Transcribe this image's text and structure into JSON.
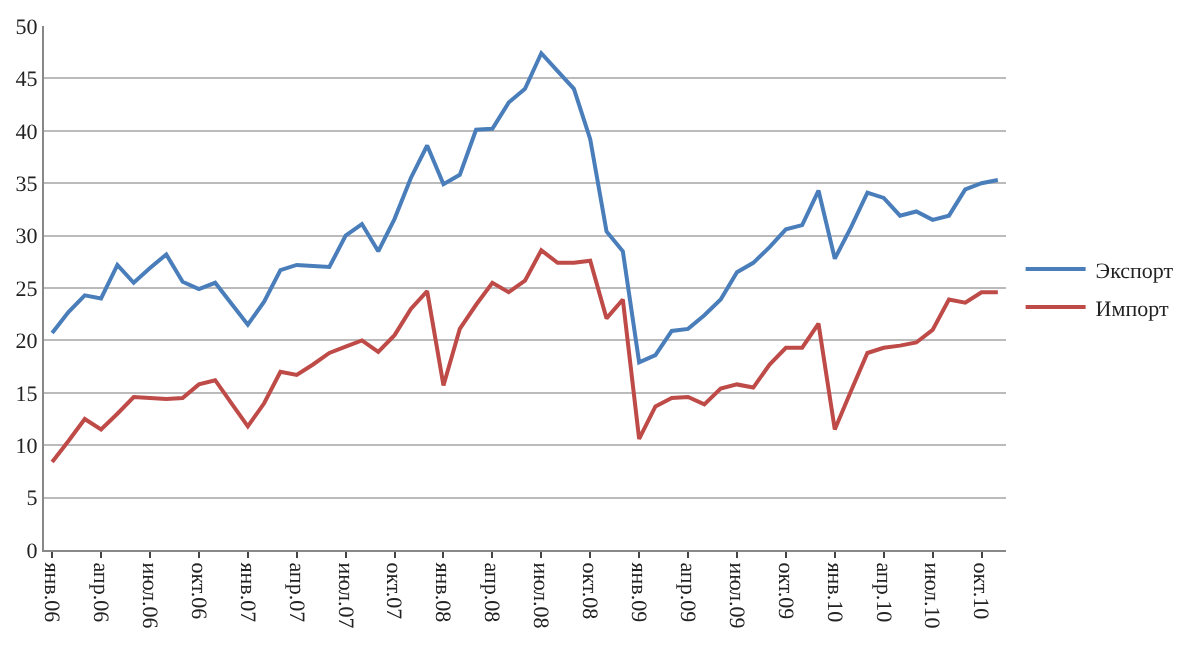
{
  "chart_data": {
    "type": "line",
    "categories": [
      "янв.06",
      null,
      null,
      "апр.06",
      null,
      null,
      "июл.06",
      null,
      null,
      "окт.06",
      null,
      null,
      "янв.07",
      null,
      null,
      "апр.07",
      null,
      null,
      "июл.07",
      null,
      null,
      "окт.07",
      null,
      null,
      "янв.08",
      null,
      null,
      "апр.08",
      null,
      null,
      "июл.08",
      null,
      null,
      "окт.08",
      null,
      null,
      "янв.09",
      null,
      null,
      "апр.09",
      null,
      null,
      "июл.09",
      null,
      null,
      "окт.09",
      null,
      null,
      "янв.10",
      null,
      null,
      "апр.10",
      null,
      null,
      "июл.10",
      null,
      null,
      "окт.10",
      null
    ],
    "series": [
      {
        "name": "Экспорт",
        "color": "#4a7ebb",
        "values": [
          20.7,
          22.7,
          24.3,
          24.0,
          27.2,
          25.5,
          26.9,
          28.2,
          25.6,
          24.9,
          25.5,
          23.5,
          21.5,
          23.7,
          26.7,
          27.2,
          27.1,
          27.0,
          30.0,
          31.1,
          28.5,
          31.6,
          35.5,
          38.6,
          34.9,
          35.8,
          40.1,
          40.2,
          42.7,
          44.0,
          47.4,
          45.7,
          44.0,
          39.2,
          30.4,
          28.5,
          17.9,
          18.6,
          20.9,
          21.1,
          22.4,
          23.9,
          26.5,
          27.4,
          28.9,
          30.6,
          31.0,
          34.3,
          27.8,
          30.8,
          34.1,
          33.6,
          31.9,
          32.3,
          31.5,
          31.9,
          34.4,
          35.0,
          35.3
        ]
      },
      {
        "name": "Импорт",
        "color": "#be4b48",
        "values": [
          8.4,
          10.4,
          12.5,
          11.5,
          13.0,
          14.6,
          14.5,
          14.4,
          14.5,
          15.8,
          16.2,
          14.0,
          11.8,
          14.0,
          17.0,
          16.7,
          17.7,
          18.8,
          19.4,
          20.0,
          18.9,
          20.5,
          23.0,
          24.7,
          15.7,
          21.1,
          23.4,
          25.5,
          24.6,
          25.7,
          28.6,
          27.4,
          27.4,
          27.6,
          22.1,
          23.9,
          10.6,
          13.7,
          14.5,
          14.6,
          13.9,
          15.4,
          15.8,
          15.5,
          17.7,
          19.3,
          19.3,
          21.6,
          11.5,
          15.2,
          18.8,
          19.3,
          19.5,
          19.8,
          21.0,
          23.9,
          23.6,
          24.6,
          24.6
        ]
      }
    ],
    "ylim": [
      0,
      50
    ],
    "yticks": [
      0,
      5,
      10,
      15,
      20,
      25,
      30,
      35,
      40,
      45,
      50
    ],
    "grid": "y",
    "legend": "right",
    "marker": "none",
    "line_style": "solid"
  }
}
